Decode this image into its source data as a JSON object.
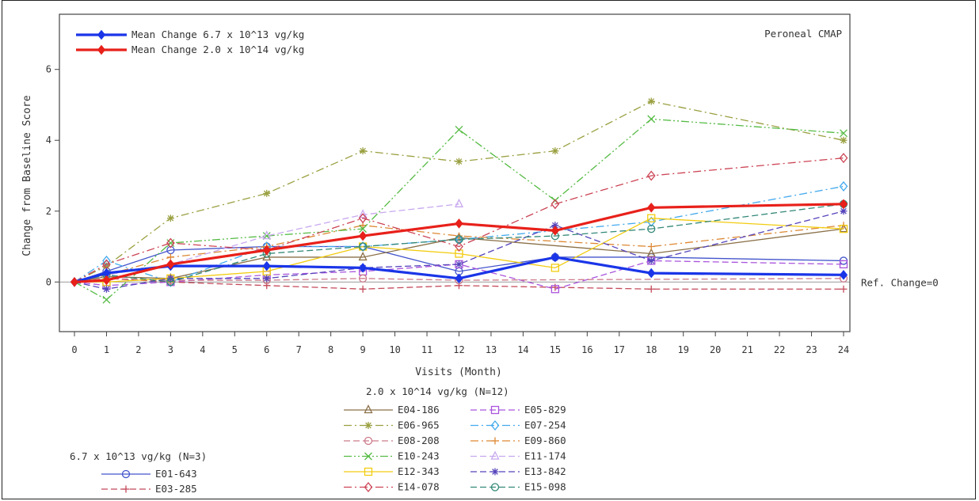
{
  "chart_data": {
    "type": "line",
    "panel_label": "Peroneal CMAP",
    "xlabel": "Visits (Month)",
    "ylabel": "Change from Baseline Score",
    "xlim": [
      0,
      24
    ],
    "ylim": [
      -1.2,
      7.2
    ],
    "x_ticks": [
      0,
      1,
      2,
      3,
      4,
      5,
      6,
      7,
      8,
      9,
      10,
      11,
      12,
      13,
      14,
      15,
      16,
      17,
      18,
      19,
      20,
      21,
      22,
      23,
      24
    ],
    "y_ticks": [
      0,
      2,
      4,
      6
    ],
    "reference_line": {
      "y": 0,
      "label": "Ref. Change=0"
    },
    "mean_series": [
      {
        "name": "Mean Change 6.7 x 10^13 vg/kg",
        "color": "#1a35e8",
        "x": [
          0,
          1,
          3,
          6,
          9,
          12,
          15,
          18,
          24
        ],
        "y": [
          0,
          0.25,
          0.45,
          0.45,
          0.4,
          0.1,
          0.7,
          0.25,
          0.2
        ]
      },
      {
        "name": "Mean Change 2.0 x 10^14 vg/kg",
        "color": "#e8201a",
        "x": [
          0,
          1,
          3,
          6,
          9,
          12,
          15,
          18,
          24
        ],
        "y": [
          0,
          0.05,
          0.5,
          0.9,
          1.3,
          1.65,
          1.45,
          2.1,
          2.2
        ]
      }
    ],
    "groups": [
      {
        "title": "6.7 x 10^13 vg/kg (N=3)",
        "series": [
          {
            "name": "E01-643",
            "color": "#4455cc",
            "marker": "circle",
            "dash": "solid",
            "x": [
              0,
              1,
              3,
              6,
              9,
              12,
              15,
              18,
              24
            ],
            "y": [
              0,
              0.3,
              0.9,
              1.0,
              1.0,
              0.3,
              0.7,
              0.7,
              0.6
            ]
          },
          {
            "name": "E03-285",
            "color": "#c44a5a",
            "marker": "plus",
            "dash": "dash",
            "x": [
              0,
              1,
              3,
              6,
              9,
              12,
              15,
              18,
              24
            ],
            "y": [
              0,
              0.1,
              0.0,
              -0.1,
              -0.2,
              -0.1,
              -0.15,
              -0.2,
              -0.2
            ]
          }
        ]
      },
      {
        "title": "2.0 x 10^14 vg/kg (N=12)",
        "series": [
          {
            "name": "E04-186",
            "color": "#8a7048",
            "marker": "triangle",
            "dash": "solid",
            "x": [
              0,
              1,
              3,
              6,
              9,
              12,
              18,
              24
            ],
            "y": [
              0,
              0.15,
              0.1,
              0.7,
              0.7,
              1.25,
              0.8,
              1.5
            ]
          },
          {
            "name": "E05-829",
            "color": "#aa55dd",
            "marker": "square",
            "dash": "dash",
            "x": [
              0,
              1,
              3,
              6,
              9,
              12,
              15,
              18,
              24
            ],
            "y": [
              0,
              -0.1,
              0.0,
              0.2,
              0.3,
              0.5,
              -0.2,
              0.6,
              0.5
            ]
          },
          {
            "name": "E06-965",
            "color": "#9aa040",
            "marker": "star",
            "dash": "dashdot",
            "x": [
              0,
              1,
              3,
              6,
              9,
              12,
              15,
              18,
              24
            ],
            "y": [
              0,
              0.45,
              1.8,
              2.5,
              3.7,
              3.4,
              3.7,
              5.1,
              4.0
            ]
          },
          {
            "name": "E07-254",
            "color": "#44aaee",
            "marker": "diamond",
            "dash": "dashdot",
            "x": [
              0,
              1,
              3,
              6,
              9,
              12,
              18,
              24
            ],
            "y": [
              0,
              0.6,
              0.0,
              1.0,
              1.0,
              1.2,
              1.7,
              2.7
            ]
          },
          {
            "name": "E08-208",
            "color": "#cc7a8a",
            "marker": "circle",
            "dash": "dash",
            "x": [
              0,
              1,
              3,
              6,
              9,
              12,
              24
            ],
            "y": [
              0,
              0.1,
              0.05,
              0.05,
              0.1,
              0.05,
              0.1
            ]
          },
          {
            "name": "E09-860",
            "color": "#dd8833",
            "marker": "plus",
            "dash": "dashdot",
            "x": [
              0,
              1,
              3,
              6,
              9,
              12,
              18,
              24
            ],
            "y": [
              0,
              0.2,
              0.7,
              1.0,
              1.6,
              1.3,
              1.0,
              1.6
            ]
          },
          {
            "name": "E10-243",
            "color": "#55bb44",
            "marker": "x",
            "dash": "dashdotdot",
            "x": [
              0,
              1,
              3,
              6,
              9,
              12,
              15,
              18,
              24
            ],
            "y": [
              0,
              -0.5,
              1.1,
              1.3,
              1.5,
              4.3,
              2.3,
              4.6,
              4.2
            ]
          },
          {
            "name": "E11-174",
            "color": "#c8a8f0",
            "marker": "triangle",
            "dash": "dash",
            "x": [
              0,
              1,
              3,
              6,
              9,
              12
            ],
            "y": [
              0,
              0.2,
              0.5,
              1.3,
              1.9,
              2.2
            ]
          },
          {
            "name": "E12-343",
            "color": "#f2cc10",
            "marker": "square",
            "dash": "solid",
            "x": [
              0,
              1,
              3,
              6,
              9,
              12,
              15,
              18,
              24
            ],
            "y": [
              0,
              0.0,
              0.1,
              0.3,
              1.0,
              0.8,
              0.4,
              1.8,
              1.5
            ]
          },
          {
            "name": "E13-842",
            "color": "#5544bb",
            "marker": "star",
            "dash": "dash",
            "x": [
              0,
              1,
              3,
              6,
              9,
              12,
              15,
              18,
              24
            ],
            "y": [
              0,
              -0.2,
              0.1,
              0.1,
              0.4,
              0.5,
              1.6,
              0.6,
              2.0
            ]
          },
          {
            "name": "E14-078",
            "color": "#cc4455",
            "marker": "diamond",
            "dash": "dashdot",
            "x": [
              0,
              1,
              3,
              6,
              9,
              12,
              15,
              18,
              24
            ],
            "y": [
              0,
              0.5,
              1.1,
              0.9,
              1.8,
              1.0,
              2.2,
              3.0,
              3.5
            ]
          },
          {
            "name": "E15-098",
            "color": "#338877",
            "marker": "circle",
            "dash": "dash",
            "x": [
              0,
              1,
              3,
              6,
              9,
              12,
              15,
              18,
              24
            ],
            "y": [
              0,
              0.2,
              0.0,
              0.8,
              1.0,
              1.2,
              1.3,
              1.5,
              2.2
            ]
          }
        ]
      }
    ]
  }
}
